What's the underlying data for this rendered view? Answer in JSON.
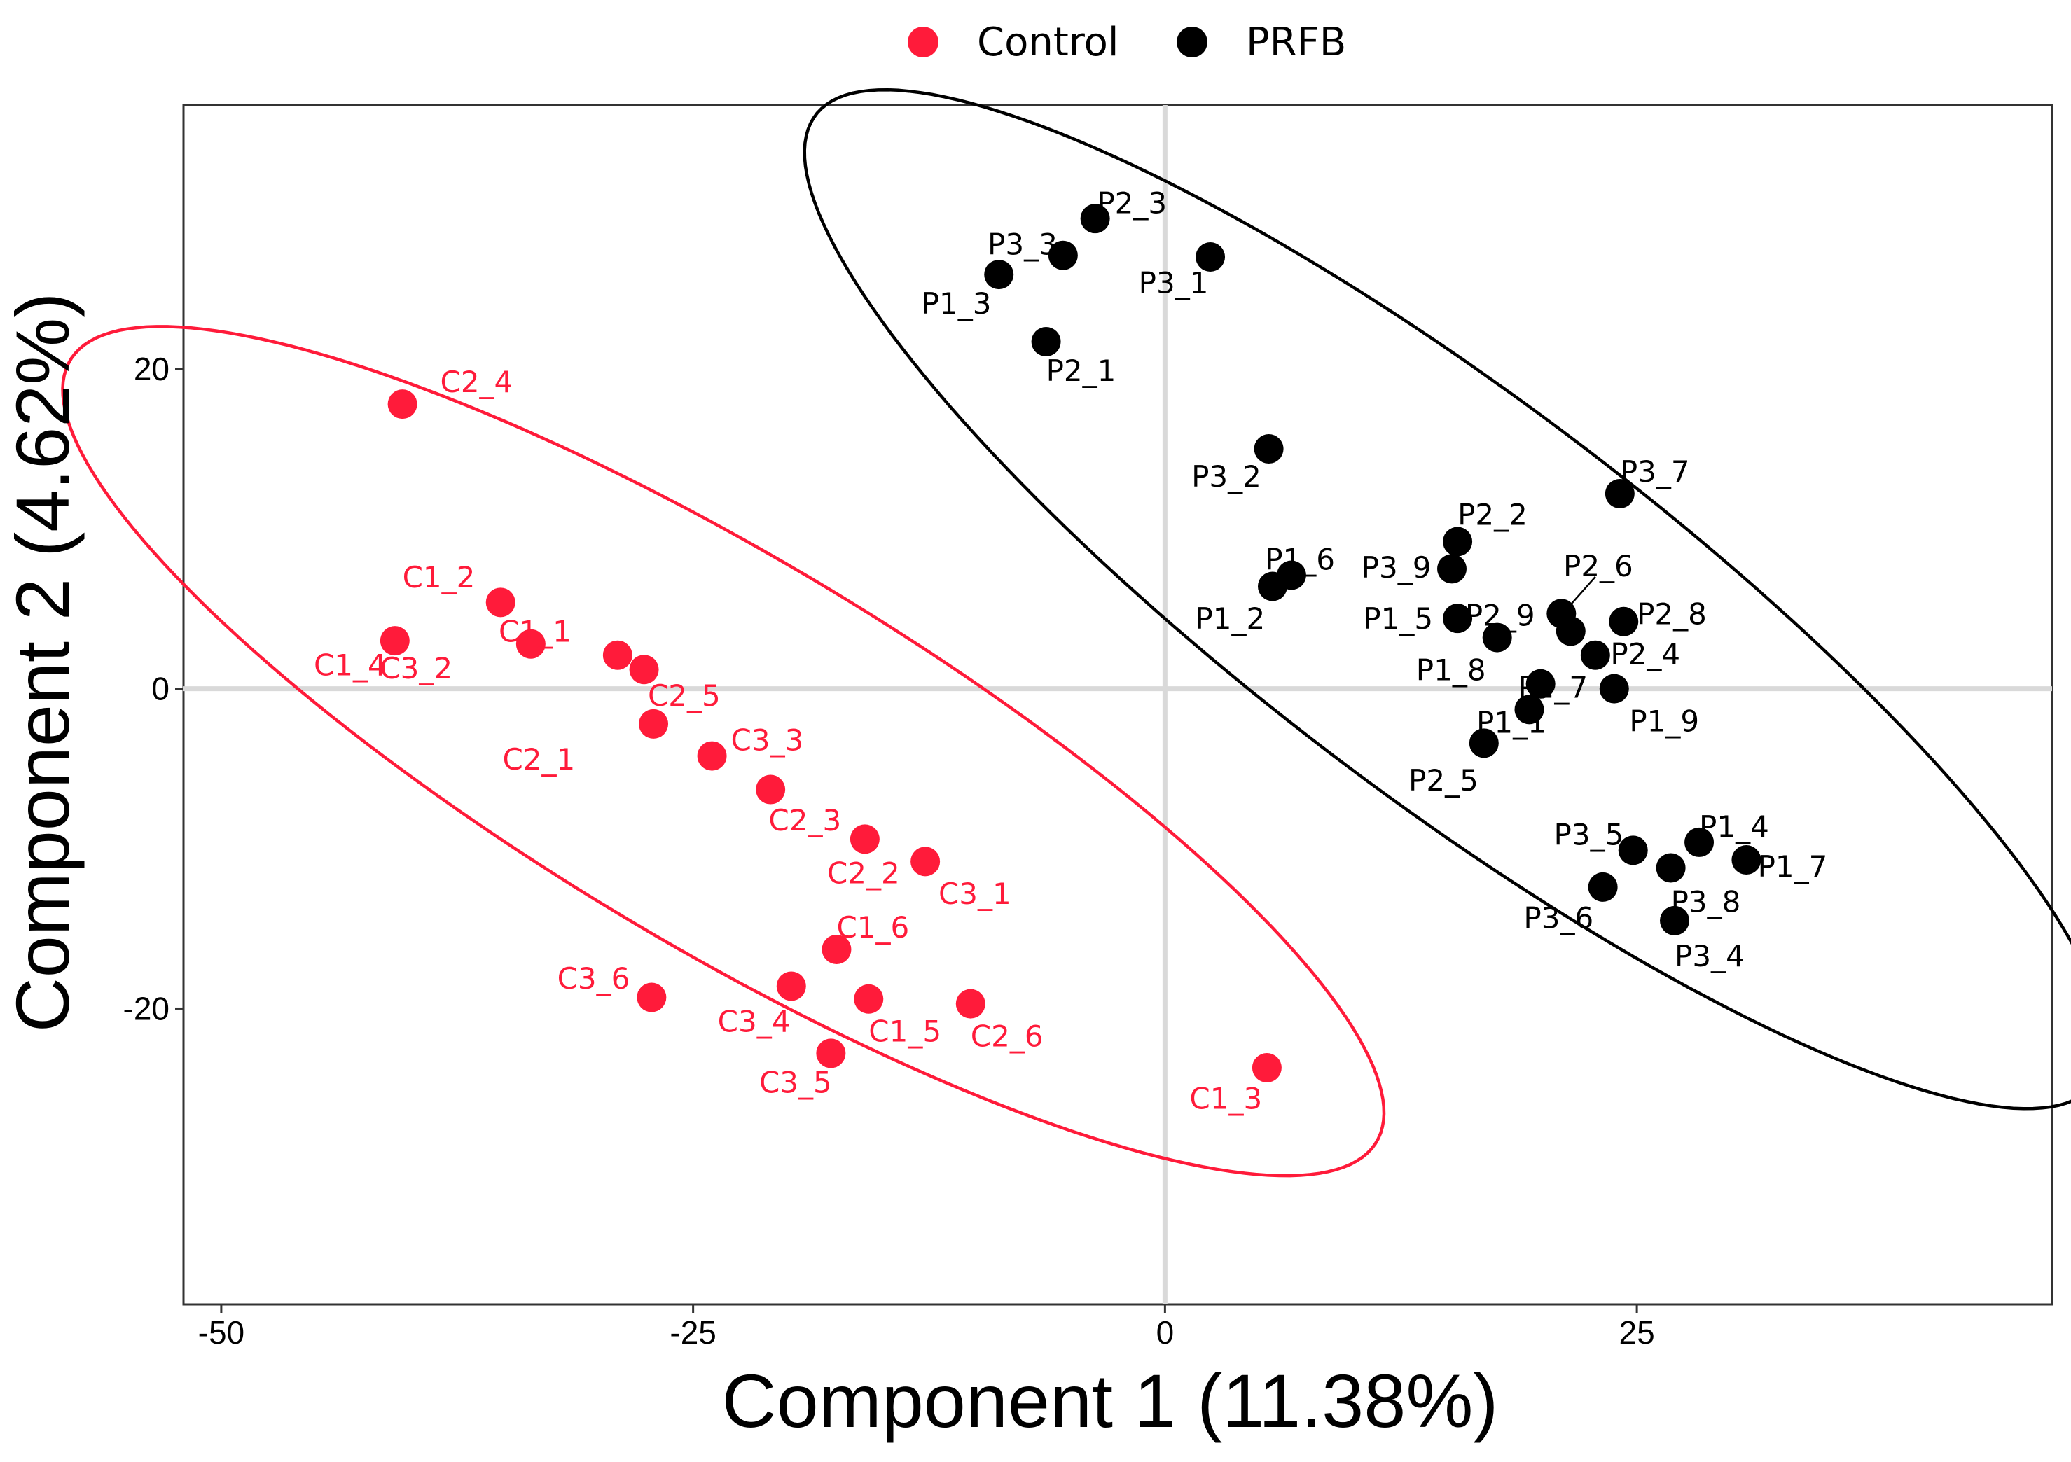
{
  "chart_data": {
    "type": "scatter",
    "title": "",
    "xlabel": "Component 1 (11.38%)",
    "ylabel": "Component 2 (4.62%)",
    "xlim": [
      -52,
      47
    ],
    "ylim": [
      -38.5,
      36.5
    ],
    "xticks": [
      -50,
      -25,
      0,
      25
    ],
    "xtick_labels": [
      "-50",
      "-25",
      "0",
      "25"
    ],
    "yticks": [
      -20,
      0,
      20
    ],
    "ytick_labels": [
      "-20",
      "0",
      "20"
    ],
    "grid": false,
    "zero_lines": true,
    "legend": {
      "position": "top-center",
      "entries": [
        {
          "name": "Control",
          "color": "#FF1B3A"
        },
        {
          "name": "PRFB",
          "color": "#000000"
        }
      ]
    },
    "series": [
      {
        "name": "Control",
        "color": "#FF1B3A",
        "points": [
          {
            "label": "C2_4",
            "x": -40.4,
            "y": 17.8
          },
          {
            "label": "C1_2",
            "x": -35.2,
            "y": 5.4
          },
          {
            "label": "C1_4",
            "x": -40.8,
            "y": 3.0
          },
          {
            "label": "C3_2",
            "x": -33.6,
            "y": 2.8
          },
          {
            "label": "C1_1",
            "x": -29.0,
            "y": 2.1
          },
          {
            "label": "C2_5",
            "x": -27.6,
            "y": 1.2
          },
          {
            "label": "C2_1",
            "x": -27.1,
            "y": -2.2
          },
          {
            "label": "C3_3",
            "x": -24.0,
            "y": -4.2
          },
          {
            "label": "C2_3",
            "x": -20.9,
            "y": -6.3
          },
          {
            "label": "C2_2",
            "x": -15.9,
            "y": -9.4
          },
          {
            "label": "C3_1",
            "x": -12.7,
            "y": -10.8
          },
          {
            "label": "C1_6",
            "x": -17.4,
            "y": -16.3
          },
          {
            "label": "C3_6",
            "x": -27.2,
            "y": -19.3
          },
          {
            "label": "C3_4",
            "x": -19.8,
            "y": -18.6
          },
          {
            "label": "C1_5",
            "x": -15.7,
            "y": -19.4
          },
          {
            "label": "C2_6",
            "x": -10.3,
            "y": -19.7
          },
          {
            "label": "C3_5",
            "x": -17.7,
            "y": -22.8
          },
          {
            "label": "C1_3",
            "x": 5.4,
            "y": -23.7
          }
        ],
        "ellipse": {
          "cx": -23.4,
          "cy": -3.9,
          "semi_major": 42.4,
          "semi_minor": 11.5,
          "angle_deg": -35.9
        }
      },
      {
        "name": "PRFB",
        "color": "#000000",
        "points": [
          {
            "label": "P2_3",
            "x": -3.7,
            "y": 29.4
          },
          {
            "label": "P3_3",
            "x": -5.4,
            "y": 27.1
          },
          {
            "label": "P3_1",
            "x": 2.4,
            "y": 27.0
          },
          {
            "label": "P1_3",
            "x": -8.8,
            "y": 25.9
          },
          {
            "label": "P2_1",
            "x": -6.3,
            "y": 21.7
          },
          {
            "label": "P3_2",
            "x": 5.5,
            "y": 15.0
          },
          {
            "label": "P3_7",
            "x": 24.1,
            "y": 12.2
          },
          {
            "label": "P2_2",
            "x": 15.5,
            "y": 9.2
          },
          {
            "label": "P3_9",
            "x": 15.2,
            "y": 7.5
          },
          {
            "label": "P1_6",
            "x": 6.7,
            "y": 7.1
          },
          {
            "label": "P1_2",
            "x": 5.7,
            "y": 6.4
          },
          {
            "label": "P2_6",
            "x": 21.0,
            "y": 4.7
          },
          {
            "label": "P1_5",
            "x": 15.5,
            "y": 4.4
          },
          {
            "label": "P2_8",
            "x": 24.3,
            "y": 4.2
          },
          {
            "label": "P2_9",
            "x": 21.5,
            "y": 3.6
          },
          {
            "label": "P1_8",
            "x": 17.6,
            "y": 3.2
          },
          {
            "label": "P2_4",
            "x": 22.8,
            "y": 2.1
          },
          {
            "label": "P2_7",
            "x": 19.9,
            "y": 0.3
          },
          {
            "label": "P1_9",
            "x": 23.8,
            "y": 0.0
          },
          {
            "label": "P1_1",
            "x": 19.3,
            "y": -1.3
          },
          {
            "label": "P2_5",
            "x": 16.9,
            "y": -3.4
          },
          {
            "label": "P3_5",
            "x": 24.8,
            "y": -10.1
          },
          {
            "label": "P1_4",
            "x": 28.3,
            "y": -9.6
          },
          {
            "label": "P1_7",
            "x": 30.8,
            "y": -10.7
          },
          {
            "label": "P3_8",
            "x": 26.8,
            "y": -11.2
          },
          {
            "label": "P3_6",
            "x": 23.2,
            "y": -12.4
          },
          {
            "label": "P3_4",
            "x": 27.0,
            "y": -14.5
          }
        ],
        "ellipse": {
          "cx": 15.4,
          "cy": 5.6,
          "semi_major": 45.5,
          "semi_minor": 11.6,
          "angle_deg": -42.4
        }
      }
    ]
  }
}
